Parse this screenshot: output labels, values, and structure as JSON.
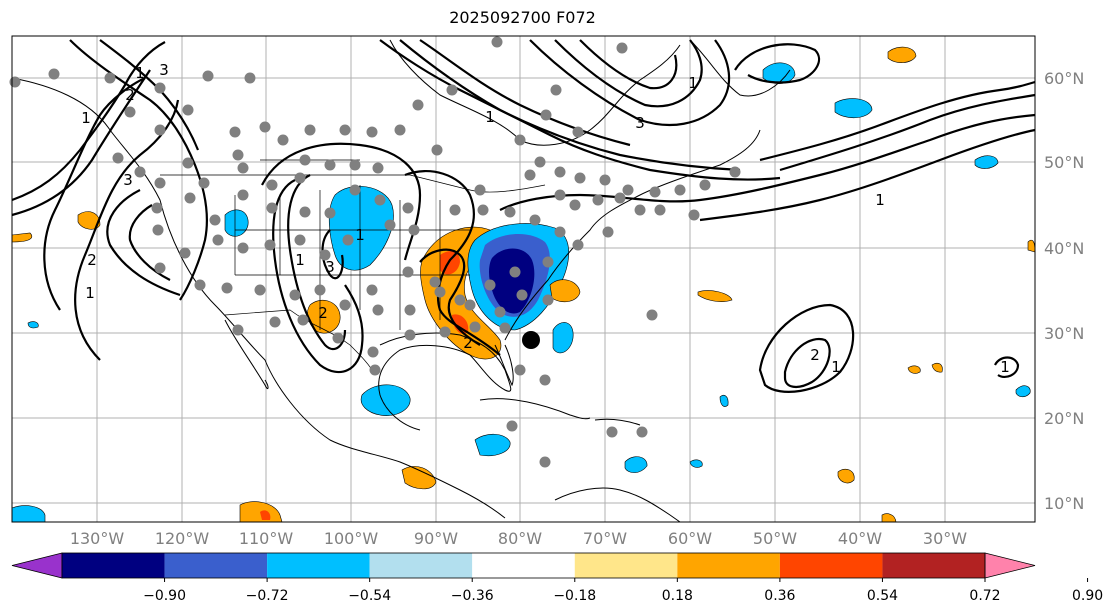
{
  "title": "2025092700 F072",
  "lat_labels": [
    "60°N",
    "50°N",
    "40°N",
    "30°N",
    "20°N",
    "10°N"
  ],
  "lon_labels": [
    "130°W",
    "120°W",
    "110°W",
    "100°W",
    "90°W",
    "80°W",
    "70°W",
    "60°W",
    "50°W",
    "40°W",
    "30°W"
  ],
  "colorbar": {
    "ticks": [
      "−0.90",
      "−0.72",
      "−0.54",
      "−0.36",
      "−0.18",
      "0.18",
      "0.36",
      "0.54",
      "0.72",
      "0.90"
    ],
    "colors": [
      "#9932cc",
      "#000080",
      "#3a5fcd",
      "#00bfff",
      "#b2dfee",
      "#ffffff",
      "#ffe68a",
      "#ffa500",
      "#ff4500",
      "#b22222",
      "#ff82ab"
    ]
  },
  "contour_labels": [
    "1",
    "2",
    "3",
    "1",
    "2",
    "3",
    "1",
    "2",
    "3",
    "1",
    "1",
    "2",
    "1",
    "1",
    "3",
    "1",
    "1",
    "2",
    "1"
  ],
  "colors": {
    "axis_label": "#808080",
    "grid": "#b0b0b0",
    "dots": "#808080"
  }
}
